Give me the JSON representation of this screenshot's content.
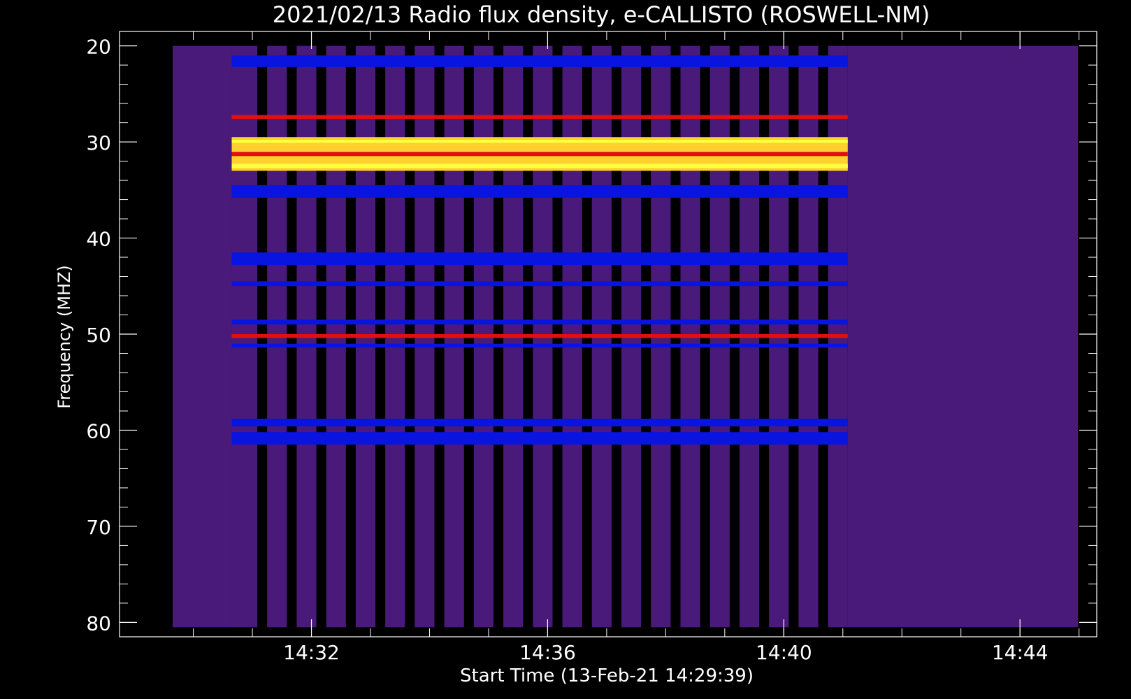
{
  "chart_data": {
    "type": "heatmap",
    "title": "2021/02/13  Radio flux density, e-CALLISTO (ROSWELL-NM)",
    "xlabel": "Start Time (13-Feb-21 14:29:39)",
    "ylabel": "Frequency (MHZ)",
    "start_time": "14:29:39",
    "x_ticks": [
      "14:32",
      "14:36",
      "14:40",
      "14:44"
    ],
    "y_ticks": [
      "20",
      "30",
      "40",
      "50",
      "60",
      "70",
      "80"
    ],
    "xlim_minutes_after_1429": [
      -0.25,
      16.3
    ],
    "ylim_mhz": [
      81.5,
      18.5
    ],
    "data_freq_range_mhz": [
      20,
      80.5
    ],
    "data_time_range": [
      "14:29:39",
      "14:44:59"
    ],
    "colormap": {
      "background": "#4a1a7a",
      "low": "#000000",
      "mid": "#0a14e0",
      "high": "#e01010",
      "peak": "#ffff40"
    },
    "gated_segment": {
      "time_range": [
        "14:30:39",
        "14:41:05"
      ],
      "on_slots": [
        [
          "14:30:39",
          "14:31:05"
        ],
        [
          "14:31:15",
          "14:31:35"
        ],
        [
          "14:31:45",
          "14:32:05"
        ],
        [
          "14:32:15",
          "14:32:35"
        ],
        [
          "14:32:45",
          "14:33:05"
        ],
        [
          "14:33:15",
          "14:33:35"
        ],
        [
          "14:33:45",
          "14:34:05"
        ],
        [
          "14:34:15",
          "14:34:35"
        ],
        [
          "14:34:45",
          "14:35:05"
        ],
        [
          "14:35:15",
          "14:35:35"
        ],
        [
          "14:35:45",
          "14:36:05"
        ],
        [
          "14:36:15",
          "14:36:35"
        ],
        [
          "14:36:45",
          "14:37:05"
        ],
        [
          "14:37:15",
          "14:37:35"
        ],
        [
          "14:37:45",
          "14:38:05"
        ],
        [
          "14:38:15",
          "14:38:35"
        ],
        [
          "14:38:45",
          "14:39:05"
        ],
        [
          "14:39:15",
          "14:39:35"
        ],
        [
          "14:39:45",
          "14:40:05"
        ],
        [
          "14:40:15",
          "14:40:35"
        ],
        [
          "14:40:45",
          "14:41:05"
        ]
      ]
    },
    "persistent_bands_mhz": [
      {
        "freq": [
          21.0,
          22.2
        ],
        "level": "mid"
      },
      {
        "freq": [
          27.2,
          27.6
        ],
        "level": "high"
      },
      {
        "freq": [
          29.5,
          33.0
        ],
        "level": "peak"
      },
      {
        "freq": [
          34.5,
          35.8
        ],
        "level": "mid"
      },
      {
        "freq": [
          41.5,
          42.8
        ],
        "level": "mid"
      },
      {
        "freq": [
          44.5,
          45.0
        ],
        "level": "mid"
      },
      {
        "freq": [
          48.5,
          49.0
        ],
        "level": "mid"
      },
      {
        "freq": [
          50.0,
          50.4
        ],
        "level": "high"
      },
      {
        "freq": [
          51.0,
          51.4
        ],
        "level": "mid"
      },
      {
        "freq": [
          58.8,
          59.6
        ],
        "level": "mid"
      },
      {
        "freq": [
          60.2,
          61.5
        ],
        "level": "mid"
      }
    ]
  }
}
